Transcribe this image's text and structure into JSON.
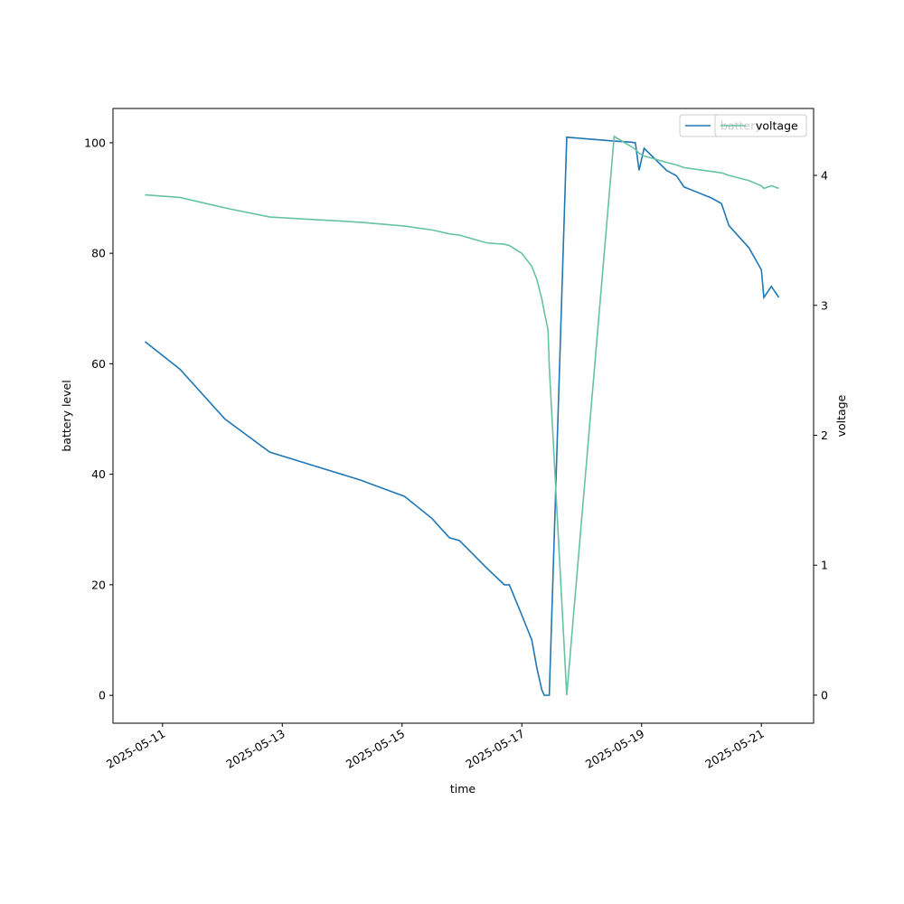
{
  "chart_data": {
    "type": "line",
    "x_label": "time",
    "y_label": "battery level",
    "y2_label": "voltage",
    "x": [
      "2025-05-10 17:00",
      "2025-05-11 07:00",
      "2025-05-12 01:00",
      "2025-05-12 19:00",
      "2025-05-13 13:00",
      "2025-05-14 07:00",
      "2025-05-15 01:00",
      "2025-05-15 12:00",
      "2025-05-15 19:00",
      "2025-05-15 23:00",
      "2025-05-16 10:00",
      "2025-05-16 17:00",
      "2025-05-16 19:00",
      "2025-05-17 00:00",
      "2025-05-17 04:00",
      "2025-05-17 06:00",
      "2025-05-17 08:00",
      "2025-05-17 09:00",
      "2025-05-17 10:30",
      "2025-05-17 11:00",
      "2025-05-17 18:00",
      "2025-05-18 13:00",
      "2025-05-18 20:00",
      "2025-05-18 21:30",
      "2025-05-18 23:00",
      "2025-05-19 01:00",
      "2025-05-19 10:00",
      "2025-05-19 14:00",
      "2025-05-19 17:00",
      "2025-05-20 04:00",
      "2025-05-20 08:00",
      "2025-05-20 11:00",
      "2025-05-20 19:00",
      "2025-05-21 00:00",
      "2025-05-21 01:00",
      "2025-05-21 04:00",
      "2025-05-21 07:00"
    ],
    "series": [
      {
        "name": "battery",
        "color": "#1f77b4",
        "axis": "y",
        "values": [
          64,
          59,
          50,
          44,
          41.5,
          39,
          36,
          32,
          28.5,
          28,
          23,
          20,
          20,
          14.5,
          10,
          5,
          1,
          0,
          0,
          0,
          101,
          100.3,
          100.1,
          100,
          95,
          99,
          95,
          94,
          92,
          90,
          89,
          85,
          81,
          77,
          72,
          74,
          72
        ]
      },
      {
        "name": "voltage",
        "color": "#66c2a5",
        "axis": "y2",
        "values": [
          3.85,
          3.83,
          3.75,
          3.68,
          3.66,
          3.64,
          3.61,
          3.58,
          3.55,
          3.54,
          3.48,
          3.47,
          3.46,
          3.4,
          3.3,
          3.2,
          3.05,
          2.95,
          2.81,
          2.53,
          0,
          4.3,
          4.22,
          4.2,
          4.17,
          4.15,
          4.1,
          4.08,
          4.06,
          4.03,
          4.02,
          4.0,
          3.96,
          3.92,
          3.9,
          3.92,
          3.9
        ]
      }
    ],
    "xlim": [
      "2025-05-10 04:09",
      "2025-05-21 20:56"
    ],
    "xticks": [
      "2025-05-11",
      "2025-05-13",
      "2025-05-15",
      "2025-05-17",
      "2025-05-19",
      "2025-05-21"
    ],
    "ylim": [
      -5.05,
      106.2
    ],
    "yticks": [
      0,
      20,
      40,
      60,
      80,
      100
    ],
    "y2lim": [
      -0.216,
      4.515
    ],
    "y2ticks": [
      0,
      1,
      2,
      3,
      4
    ],
    "legend": "upper right",
    "grid": false
  }
}
